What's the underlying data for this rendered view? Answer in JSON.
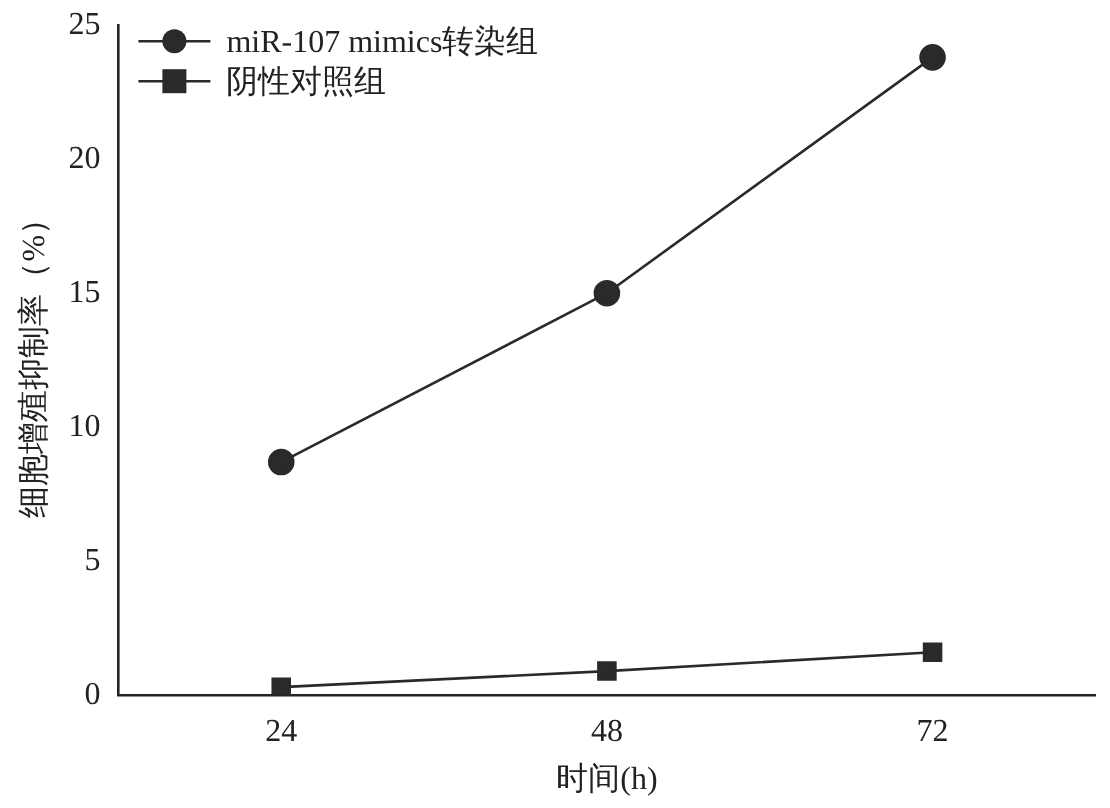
{
  "chart_data": {
    "type": "line",
    "xlabel": "时间(h)",
    "ylabel": "细胞增殖抑制率（%）",
    "x": [
      24,
      48,
      72
    ],
    "xlim": [
      12,
      84
    ],
    "xticks": [
      24,
      48,
      72
    ],
    "ylim": [
      0,
      25
    ],
    "yticks": [
      0,
      5,
      10,
      15,
      20,
      25
    ],
    "series": [
      {
        "name": "miR-107 mimics转染组",
        "color": "#2a2a2a",
        "marker": "circle",
        "values": [
          8.7,
          15.0,
          23.8
        ]
      },
      {
        "name": "阴性对照组",
        "color": "#2a2a2a",
        "marker": "square",
        "values": [
          0.3,
          0.9,
          1.6
        ]
      }
    ],
    "grid": false,
    "legend": "top left",
    "line_style": "solid"
  }
}
